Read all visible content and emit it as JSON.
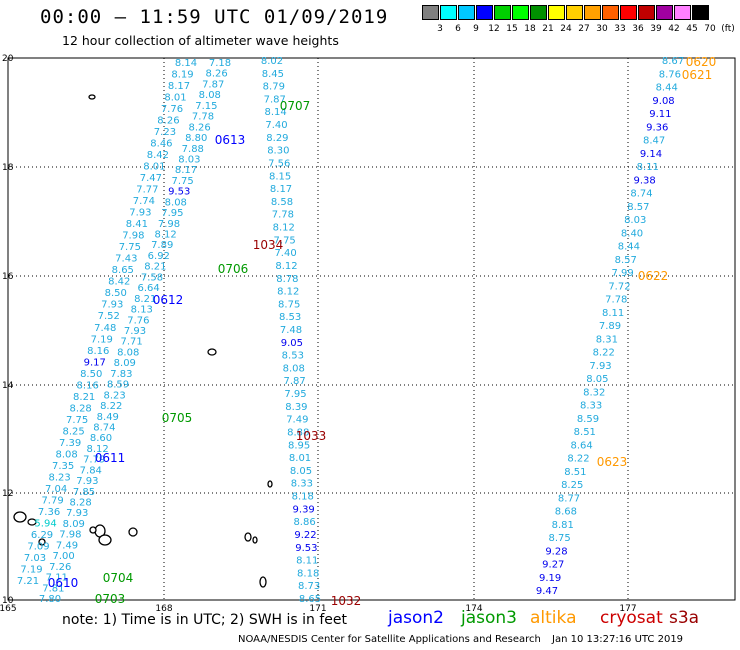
{
  "header": {
    "title": "00:00 – 11:59 UTC 01/09/2019",
    "subtitle": "12 hour collection of altimeter wave heights"
  },
  "color_scale": {
    "labels": [
      "3",
      "6",
      "9",
      "12",
      "15",
      "18",
      "21",
      "24",
      "27",
      "30",
      "33",
      "36",
      "39",
      "42",
      "45",
      "70",
      "(ft)"
    ],
    "colors": [
      "#808080",
      "#00ffff",
      "#00c8ff",
      "#0000ff",
      "#00d000",
      "#00ff00",
      "#009000",
      "#ffff00",
      "#ffd000",
      "#ffa000",
      "#ff6000",
      "#ff0000",
      "#c00000",
      "#a000a0",
      "#ff80ff",
      "#000000"
    ]
  },
  "axes": {
    "x_labels": [
      "165",
      "168",
      "171",
      "174",
      "177"
    ],
    "y_labels": [
      "20",
      "18",
      "16",
      "14",
      "12",
      "10"
    ]
  },
  "passes": [
    {
      "label": "0620",
      "color": "#ff9900"
    },
    {
      "label": "0621",
      "color": "#ff9900"
    },
    {
      "label": "0707",
      "color": "#009900"
    },
    {
      "label": "0613",
      "color": "#0000ff"
    },
    {
      "label": "1034",
      "color": "#990000"
    },
    {
      "label": "0706",
      "color": "#009900"
    },
    {
      "label": "0622",
      "color": "#ff9900"
    },
    {
      "label": "0612",
      "color": "#0000ff"
    },
    {
      "label": "0705",
      "color": "#009900"
    },
    {
      "label": "1033",
      "color": "#990000"
    },
    {
      "label": "0611",
      "color": "#0000ff"
    },
    {
      "label": "0623",
      "color": "#ff9900"
    },
    {
      "label": "0704",
      "color": "#009900"
    },
    {
      "label": "0610",
      "color": "#0000ff"
    },
    {
      "label": "0703",
      "color": "#009900"
    },
    {
      "label": "1032",
      "color": "#990000"
    }
  ],
  "tracks": {
    "A": [
      "8.14",
      "8.19",
      "8.17",
      "8.01",
      "7.76",
      "8.26",
      "7.23",
      "8.46",
      "8.42",
      "8.01",
      "7.47",
      "7.77",
      "7.74",
      "7.93",
      "8.41",
      "7.98",
      "7.75",
      "7.43",
      "8.65",
      "8.42",
      "8.50",
      "7.93",
      "7.52",
      "7.48",
      "7.19",
      "8.16",
      "9.17",
      "8.50",
      "8.16",
      "8.21",
      "8.28",
      "7.75",
      "8.25",
      "7.39",
      "8.08",
      "7.35",
      "8.23",
      "7.04",
      "7.79",
      "7.36",
      "5.94",
      "6.29",
      "7.09",
      "7.03",
      "7.19",
      "7.21"
    ],
    "B": [
      "7.18",
      "8.26",
      "7.87",
      "8.08",
      "7.15",
      "7.78",
      "8.26",
      "8.80",
      "7.88",
      "8.03",
      "8.17",
      "7.75",
      "9.53",
      "8.08",
      "7.95",
      "7.98",
      "8.12",
      "7.89",
      "6.92",
      "8.21",
      "7.58",
      "6.64",
      "8.21",
      "8.13",
      "7.76",
      "7.93",
      "7.71",
      "8.08",
      "8.09",
      "7.83",
      "8.59",
      "8.23",
      "8.22",
      "8.49",
      "8.74",
      "8.60",
      "8.12",
      "7.79",
      "7.84",
      "7.93",
      "7.85",
      "8.28",
      "7.93",
      "8.09",
      "7.98",
      "7.49",
      "7.00",
      "7.26",
      "7.11",
      "7.81",
      "7.80"
    ],
    "C": [
      "8.02",
      "8.45",
      "8.79",
      "7.87",
      "8.14",
      "7.40",
      "8.29",
      "8.30",
      "7.56",
      "8.15",
      "8.17",
      "8.58",
      "7.78",
      "8.12",
      "7.75",
      "7.40",
      "8.12",
      "8.78",
      "8.12",
      "8.75",
      "8.53",
      "7.48",
      "9.05",
      "8.53",
      "8.08",
      "7.87",
      "7.95",
      "8.39",
      "7.49",
      "8.88",
      "8.95",
      "8.01",
      "8.05",
      "8.33",
      "8.18",
      "9.39",
      "8.86",
      "9.22",
      "9.53",
      "8.11",
      "8.18",
      "8.73",
      "8.65"
    ],
    "D": [
      "8.67",
      "8.76",
      "8.44",
      "9.08",
      "9.11",
      "9.36",
      "8.47",
      "9.14",
      "8.11",
      "9.38",
      "8.74",
      "8.57",
      "8.03",
      "8.40",
      "8.44",
      "8.57",
      "7.99",
      "7.72",
      "7.78",
      "8.11",
      "7.89",
      "8.31",
      "8.22",
      "7.93",
      "8.05",
      "8.32",
      "8.33",
      "8.59",
      "8.51",
      "8.64",
      "8.22",
      "8.51",
      "8.25",
      "8.77",
      "8.68",
      "8.81",
      "8.75",
      "9.28",
      "9.27",
      "9.19",
      "9.47"
    ]
  },
  "satellites": [
    {
      "name": "jason2",
      "color": "#0000ff"
    },
    {
      "name": "jason3",
      "color": "#009900"
    },
    {
      "name": "altika",
      "color": "#ff9900"
    },
    {
      "name": "cryosat",
      "color": "#cc0000"
    },
    {
      "name": "s3a",
      "color": "#990000"
    }
  ],
  "footer": {
    "note": "note:  1) Time is in UTC;  2) SWH is in feet",
    "credit": "NOAA/NESDIS Center for Satellite Applications and Research",
    "timestamp": "Jan 10 13:27:16 UTC 2019"
  }
}
